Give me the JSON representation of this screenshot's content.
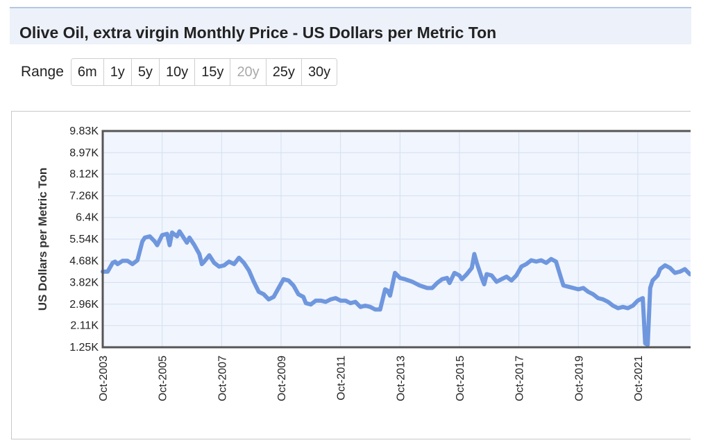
{
  "page": {
    "title": "Olive Oil, extra virgin Monthly Price - US Dollars per Metric Ton"
  },
  "range": {
    "label": "Range",
    "options": [
      {
        "label": "6m",
        "enabled": true
      },
      {
        "label": "1y",
        "enabled": true
      },
      {
        "label": "5y",
        "enabled": true
      },
      {
        "label": "10y",
        "enabled": true
      },
      {
        "label": "15y",
        "enabled": true
      },
      {
        "label": "20y",
        "enabled": false
      },
      {
        "label": "25y",
        "enabled": true
      },
      {
        "label": "30y",
        "enabled": true
      }
    ]
  },
  "chart_data": {
    "type": "line",
    "title": "",
    "xlabel": "",
    "ylabel": "US Dollars per Metric Ton",
    "x_range": [
      "2003-10",
      "2023-09"
    ],
    "ylim": [
      1250,
      9830
    ],
    "yticks": [
      {
        "value": 1250,
        "label": "1.25K"
      },
      {
        "value": 2110,
        "label": "2.11K"
      },
      {
        "value": 2960,
        "label": "2.96K"
      },
      {
        "value": 3820,
        "label": "3.82K"
      },
      {
        "value": 4680,
        "label": "4.68K"
      },
      {
        "value": 5540,
        "label": "5.54K"
      },
      {
        "value": 6400,
        "label": "6.4K"
      },
      {
        "value": 7260,
        "label": "7.26K"
      },
      {
        "value": 8120,
        "label": "8.12K"
      },
      {
        "value": 8970,
        "label": "8.97K"
      },
      {
        "value": 9830,
        "label": "9.83K"
      }
    ],
    "xticks": [
      {
        "value": "2003-10",
        "label": "Oct-2003"
      },
      {
        "value": "2005-10",
        "label": "Oct-2005"
      },
      {
        "value": "2007-10",
        "label": "Oct-2007"
      },
      {
        "value": "2009-10",
        "label": "Oct-2009"
      },
      {
        "value": "2011-10",
        "label": "Oct-2011"
      },
      {
        "value": "2013-10",
        "label": "Oct-2013"
      },
      {
        "value": "2015-10",
        "label": "Oct-2015"
      },
      {
        "value": "2017-10",
        "label": "Oct-2017"
      },
      {
        "value": "2019-10",
        "label": "Oct-2019"
      },
      {
        "value": "2021-10",
        "label": "Oct-2021"
      }
    ],
    "grid": true,
    "legend": "none",
    "colors": {
      "line": "#6f97de",
      "plot_bg": "#f1f5fd",
      "grid": "#d4dff1",
      "border": "#555555"
    },
    "series": [
      {
        "points": [
          [
            "2003-10",
            4250
          ],
          [
            "2003-12",
            4250
          ],
          [
            "2004-02",
            4600
          ],
          [
            "2004-03",
            4650
          ],
          [
            "2004-04",
            4550
          ],
          [
            "2004-06",
            4680
          ],
          [
            "2004-08",
            4680
          ],
          [
            "2004-10",
            4550
          ],
          [
            "2004-12",
            4700
          ],
          [
            "2005-02",
            5450
          ],
          [
            "2005-03",
            5600
          ],
          [
            "2005-05",
            5650
          ],
          [
            "2005-07",
            5450
          ],
          [
            "2005-08",
            5300
          ],
          [
            "2005-10",
            5700
          ],
          [
            "2005-12",
            5750
          ],
          [
            "2006-01",
            5300
          ],
          [
            "2006-02",
            5800
          ],
          [
            "2006-04",
            5650
          ],
          [
            "2006-05",
            5850
          ],
          [
            "2006-06",
            5700
          ],
          [
            "2006-08",
            5400
          ],
          [
            "2006-09",
            5600
          ],
          [
            "2006-11",
            5300
          ],
          [
            "2007-01",
            4950
          ],
          [
            "2007-02",
            4550
          ],
          [
            "2007-03",
            4650
          ],
          [
            "2007-05",
            4900
          ],
          [
            "2007-07",
            4600
          ],
          [
            "2007-09",
            4450
          ],
          [
            "2007-11",
            4500
          ],
          [
            "2008-01",
            4650
          ],
          [
            "2008-03",
            4550
          ],
          [
            "2008-05",
            4800
          ],
          [
            "2008-07",
            4600
          ],
          [
            "2008-09",
            4300
          ],
          [
            "2008-11",
            3850
          ],
          [
            "2009-01",
            3450
          ],
          [
            "2009-03",
            3350
          ],
          [
            "2009-05",
            3150
          ],
          [
            "2009-07",
            3250
          ],
          [
            "2009-09",
            3600
          ],
          [
            "2009-11",
            3950
          ],
          [
            "2010-01",
            3900
          ],
          [
            "2010-03",
            3700
          ],
          [
            "2010-05",
            3350
          ],
          [
            "2010-07",
            3250
          ],
          [
            "2010-08",
            3000
          ],
          [
            "2010-10",
            2950
          ],
          [
            "2010-12",
            3100
          ],
          [
            "2011-02",
            3100
          ],
          [
            "2011-04",
            3050
          ],
          [
            "2011-06",
            3150
          ],
          [
            "2011-08",
            3200
          ],
          [
            "2011-10",
            3100
          ],
          [
            "2011-12",
            3100
          ],
          [
            "2012-02",
            3000
          ],
          [
            "2012-04",
            3050
          ],
          [
            "2012-06",
            2850
          ],
          [
            "2012-08",
            2900
          ],
          [
            "2012-10",
            2850
          ],
          [
            "2012-12",
            2750
          ],
          [
            "2013-02",
            2750
          ],
          [
            "2013-04",
            3550
          ],
          [
            "2013-05",
            3500
          ],
          [
            "2013-06",
            3300
          ],
          [
            "2013-08",
            4200
          ],
          [
            "2013-10",
            4000
          ],
          [
            "2013-12",
            3950
          ],
          [
            "2014-03",
            3850
          ],
          [
            "2014-06",
            3700
          ],
          [
            "2014-09",
            3600
          ],
          [
            "2014-11",
            3600
          ],
          [
            "2015-01",
            3800
          ],
          [
            "2015-03",
            3950
          ],
          [
            "2015-05",
            4000
          ],
          [
            "2015-06",
            3800
          ],
          [
            "2015-08",
            4200
          ],
          [
            "2015-10",
            4100
          ],
          [
            "2015-11",
            3950
          ],
          [
            "2016-01",
            4150
          ],
          [
            "2016-03",
            4400
          ],
          [
            "2016-04",
            4950
          ],
          [
            "2016-05",
            4600
          ],
          [
            "2016-07",
            4000
          ],
          [
            "2016-08",
            3750
          ],
          [
            "2016-09",
            4150
          ],
          [
            "2016-11",
            4100
          ],
          [
            "2017-01",
            3850
          ],
          [
            "2017-03",
            3950
          ],
          [
            "2017-05",
            4050
          ],
          [
            "2017-07",
            3900
          ],
          [
            "2017-09",
            4100
          ],
          [
            "2017-11",
            4450
          ],
          [
            "2018-01",
            4550
          ],
          [
            "2018-03",
            4700
          ],
          [
            "2018-05",
            4650
          ],
          [
            "2018-07",
            4700
          ],
          [
            "2018-09",
            4600
          ],
          [
            "2018-11",
            4750
          ],
          [
            "2019-01",
            4650
          ],
          [
            "2019-03",
            4000
          ],
          [
            "2019-04",
            3700
          ],
          [
            "2019-06",
            3650
          ],
          [
            "2019-08",
            3600
          ],
          [
            "2019-10",
            3550
          ],
          [
            "2019-12",
            3600
          ],
          [
            "2020-02",
            3450
          ],
          [
            "2020-04",
            3350
          ],
          [
            "2020-06",
            3200
          ],
          [
            "2020-08",
            3150
          ],
          [
            "2020-10",
            3050
          ],
          [
            "2020-12",
            2900
          ],
          [
            "2021-02",
            2800
          ],
          [
            "2021-04",
            2850
          ],
          [
            "2021-06",
            2800
          ],
          [
            "2021-08",
            2900
          ],
          [
            "2021-10",
            3100
          ],
          [
            "2021-12",
            3200
          ],
          [
            "2022-01",
            1400
          ],
          [
            "2022-02",
            1350
          ],
          [
            "2022-03",
            3600
          ],
          [
            "2022-04",
            3900
          ],
          [
            "2022-06",
            4100
          ],
          [
            "2022-07",
            4350
          ],
          [
            "2022-09",
            4500
          ],
          [
            "2022-11",
            4400
          ],
          [
            "2023-01",
            4200
          ],
          [
            "2023-03",
            4250
          ],
          [
            "2023-05",
            4350
          ],
          [
            "2023-07",
            4150
          ],
          [
            "2023-09",
            4100
          ]
        ]
      }
    ]
  }
}
